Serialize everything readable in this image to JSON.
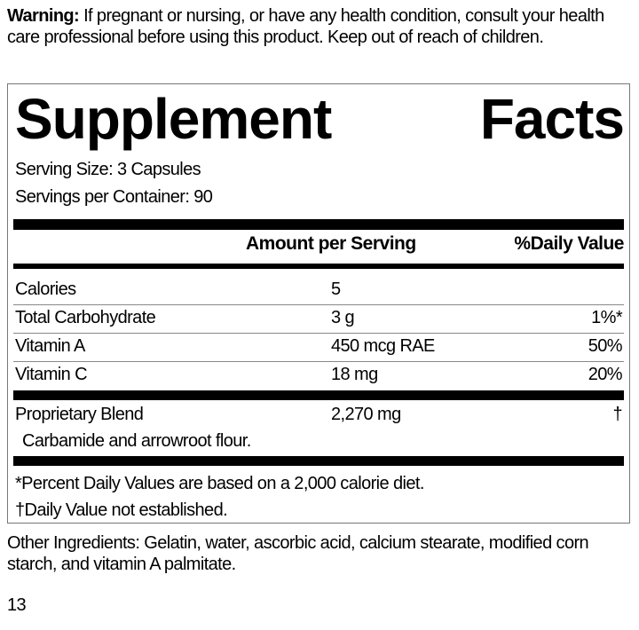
{
  "warning": {
    "label": "Warning:",
    "text": " If pregnant or nursing, or have any health condition, consult your health care professional before using this product. Keep out of reach of children."
  },
  "title": {
    "word1": "Supplement",
    "word2": "Facts"
  },
  "serving_size": "Serving Size: 3 Capsules",
  "servings_per_container": "Servings per Container: 90",
  "headers": {
    "amount": "Amount per Serving",
    "daily_value": "%Daily Value"
  },
  "rows": [
    {
      "name": "Calories",
      "amount": "5",
      "dv": ""
    },
    {
      "name": "Total Carbohydrate",
      "amount": "3 g",
      "dv": "1%*"
    },
    {
      "name": "Vitamin A",
      "amount": "450 mcg RAE",
      "dv": "50%"
    },
    {
      "name": "Vitamin C",
      "amount": "18 mg",
      "dv": "20%"
    }
  ],
  "blend": {
    "name": "Proprietary Blend",
    "amount": "2,270 mg",
    "dv": "†",
    "ingredients": "Carbamide and arrowroot flour."
  },
  "footnotes": [
    "*Percent Daily Values are based on a 2,000 calorie diet.",
    "†Daily Value not established."
  ],
  "other_ingredients": "Other Ingredients: Gelatin, water, ascorbic acid, calcium stearate, modified corn starch, and vitamin A palmitate.",
  "page_number": "13"
}
